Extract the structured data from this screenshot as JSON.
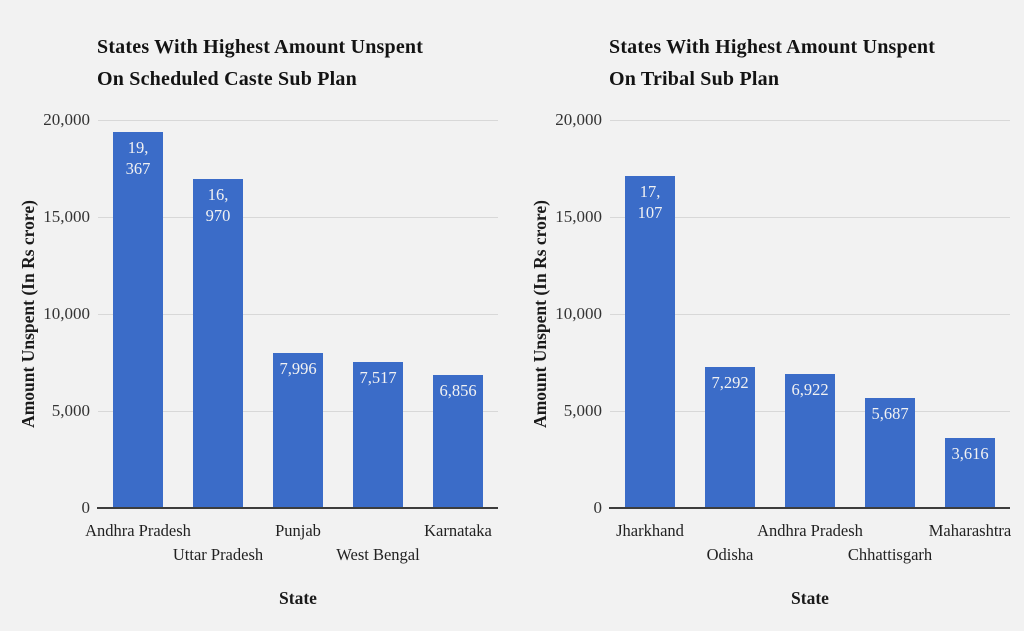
{
  "page": {
    "background_color": "#f2f2f2"
  },
  "colors": {
    "bar": "#3b6cc8",
    "gridline": "#d8d8d8",
    "axis_line": "#3d3d3d",
    "tick_text": "#333333",
    "title_text": "#131313",
    "value_label_text": "#f2f2f2"
  },
  "chart_data": [
    {
      "type": "bar",
      "title": "States With Highest Amount Unspent On Scheduled Caste Sub Plan",
      "title_lines": [
        "States With Highest Amount Unspent",
        "On Scheduled Caste Sub Plan"
      ],
      "xlabel": "State",
      "ylabel": "Amount Unspent (In Rs crore)",
      "categories": [
        "Andhra Pradesh",
        "Uttar Pradesh",
        "Punjab",
        "West Bengal",
        "Karnataka"
      ],
      "values": [
        19367,
        16970,
        7996,
        7517,
        6856
      ],
      "value_label_lines": [
        [
          "19,",
          "367"
        ],
        [
          "16,",
          "970"
        ],
        [
          "7,996"
        ],
        [
          "7,517"
        ],
        [
          "6,856"
        ]
      ],
      "ylim": [
        0,
        20000
      ],
      "yticks": [
        {
          "label": "20,000",
          "value": 20000
        },
        {
          "label": "15,000",
          "value": 15000
        },
        {
          "label": "10,000",
          "value": 10000
        },
        {
          "label": "5,000",
          "value": 5000
        },
        {
          "label": "0",
          "value": 0
        }
      ],
      "grid": true,
      "legend": "none"
    },
    {
      "type": "bar",
      "title": "States With Highest Amount Unspent On Tribal Sub Plan",
      "title_lines": [
        "States With Highest Amount Unspent",
        "On Tribal Sub Plan"
      ],
      "xlabel": "State",
      "ylabel": "Amount Unspent (In Rs crore)",
      "categories": [
        "Jharkhand",
        "Odisha",
        "Andhra Pradesh",
        "Chhattisgarh",
        "Maharashtra"
      ],
      "values": [
        17107,
        7292,
        6922,
        5687,
        3616
      ],
      "value_label_lines": [
        [
          "17,",
          "107"
        ],
        [
          "7,292"
        ],
        [
          "6,922"
        ],
        [
          "5,687"
        ],
        [
          "3,616"
        ]
      ],
      "ylim": [
        0,
        20000
      ],
      "yticks": [
        {
          "label": "20,000",
          "value": 20000
        },
        {
          "label": "15,000",
          "value": 15000
        },
        {
          "label": "10,000",
          "value": 10000
        },
        {
          "label": "5,000",
          "value": 5000
        },
        {
          "label": "0",
          "value": 0
        }
      ],
      "grid": true,
      "legend": "none"
    }
  ]
}
